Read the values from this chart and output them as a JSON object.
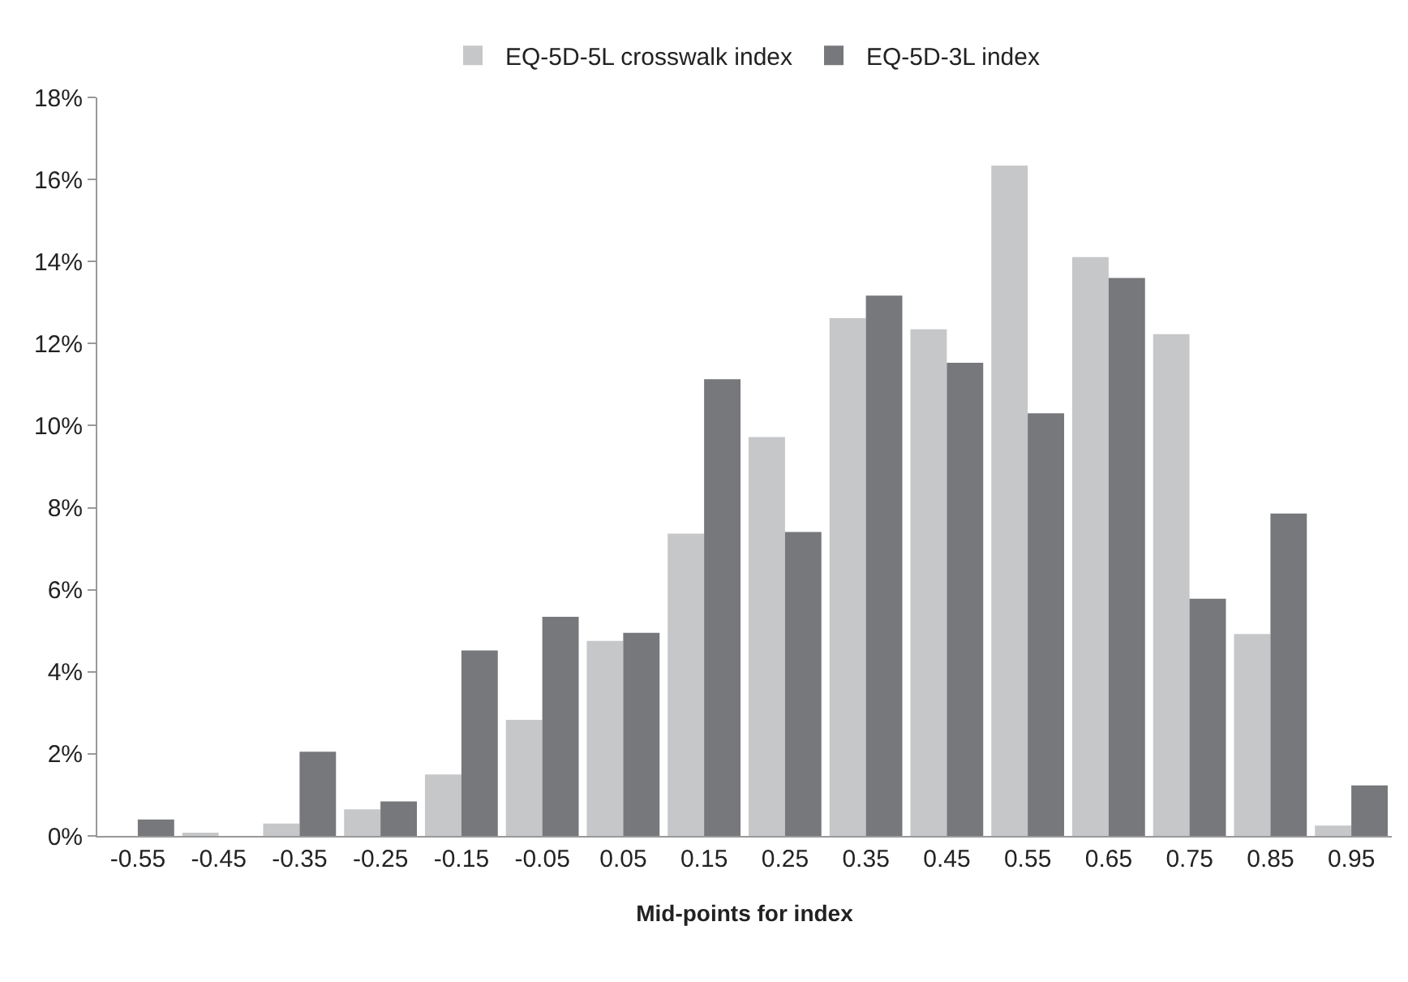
{
  "chart_data": {
    "type": "bar",
    "xlabel": "Mid-points for index",
    "categories": [
      "-0.55",
      "-0.45",
      "-0.35",
      "-0.25",
      "-0.15",
      "-0.05",
      "0.05",
      "0.15",
      "0.25",
      "0.35",
      "0.45",
      "0.55",
      "0.65",
      "0.75",
      "0.85",
      "0.95"
    ],
    "series": [
      {
        "name": "EQ-5D-5L crosswalk index",
        "color": "#c6c7c9",
        "values": [
          0,
          0.05,
          0.3,
          0.65,
          1.5,
          2.83,
          4.75,
          7.37,
          9.72,
          12.62,
          12.35,
          16.34,
          14.11,
          12.23,
          4.92,
          0.25
        ]
      },
      {
        "name": "EQ-5D-3L index",
        "color": "#77787c",
        "values": [
          0.4,
          0,
          2.05,
          0.84,
          4.52,
          5.34,
          4.95,
          11.13,
          7.41,
          13.17,
          11.53,
          10.3,
          13.6,
          5.78,
          7.86,
          1.23
        ]
      }
    ],
    "ylim": [
      0,
      18
    ],
    "yticks": [
      {
        "value": 0,
        "label": "0%"
      },
      {
        "value": 2,
        "label": "2%"
      },
      {
        "value": 4,
        "label": "4%"
      },
      {
        "value": 6,
        "label": "6%"
      },
      {
        "value": 8,
        "label": "8%"
      },
      {
        "value": 10,
        "label": "10%"
      },
      {
        "value": 12,
        "label": "12%"
      },
      {
        "value": 14,
        "label": "14%"
      },
      {
        "value": 16,
        "label": "16%"
      },
      {
        "value": 18,
        "label": "18%"
      }
    ],
    "grid": false,
    "legend": "top"
  }
}
